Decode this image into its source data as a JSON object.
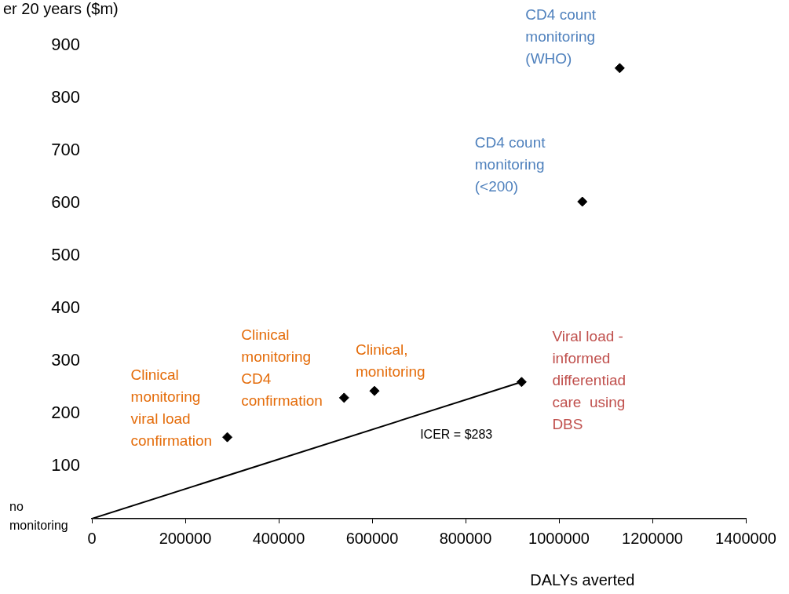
{
  "chart_data": {
    "type": "scatter",
    "ylabel": "er 20 years ($m)",
    "xlabel": "DALYs averted",
    "marker": "diamond",
    "grid": false,
    "legend": false,
    "xlim": [
      0,
      1400000
    ],
    "xticks": [
      0,
      200000,
      400000,
      600000,
      800000,
      1000000,
      1200000,
      1400000
    ],
    "ylim": [
      0,
      900
    ],
    "yticks": [
      100,
      200,
      300,
      400,
      500,
      600,
      700,
      800,
      900
    ],
    "series": [
      {
        "color": "#000000",
        "x": [
          290000,
          540000,
          605000,
          920000,
          1050000,
          1130000
        ],
        "values": [
          155,
          230,
          243,
          260,
          603,
          857
        ]
      },
      {
        "type": "line",
        "marker": "none",
        "color": "#000000",
        "x": [
          0,
          920000
        ],
        "values": [
          0,
          260
        ]
      }
    ],
    "annotations": [
      {
        "text": "no\nmonitoring",
        "x": 0,
        "y": 0
      },
      {
        "text": "Clinical\nmonitoring\nviral load\nconfirmation",
        "x": 290000,
        "y": 155
      },
      {
        "text": "Clinical\nmonitoring\nCD4\nconfirmation",
        "x": 540000,
        "y": 230
      },
      {
        "text": "Clinical,\nmonitoring",
        "x": 605000,
        "y": 243
      },
      {
        "text": "Viral load -\ninformed\ndifferentiad\ncare  using\nDBS",
        "x": 920000,
        "y": 260
      },
      {
        "text": "CD4 count\nmonitoring\n(<200)",
        "x": 1050000,
        "y": 603
      },
      {
        "text": "CD4 count\nmonitoring\n(WHO)",
        "x": 1130000,
        "y": 857
      },
      "ICER = $283"
    ]
  }
}
